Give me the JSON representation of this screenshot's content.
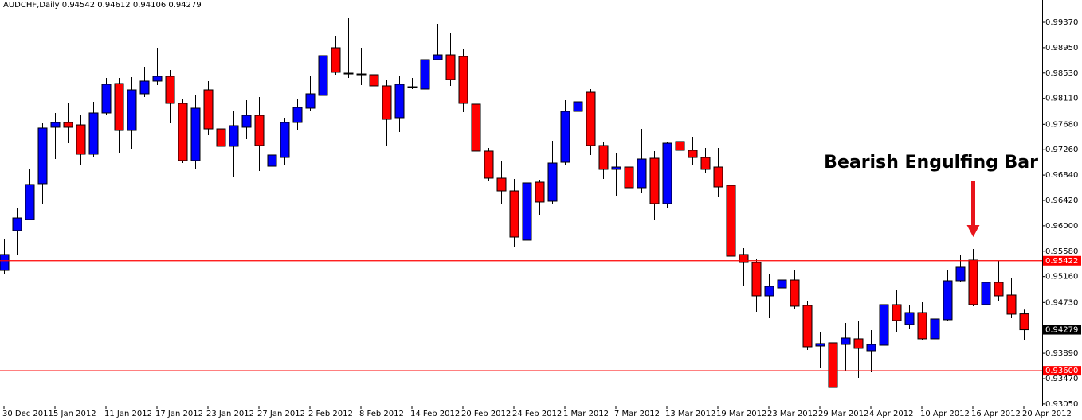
{
  "chart_data": {
    "type": "candlestick",
    "title": "AUDCHF,Daily  0.94542 0.94612 0.94106 0.94279",
    "annotation": "Bearish Engulfing Bar",
    "annotation_bar": 76,
    "up_color": "#0000ff",
    "down_color": "#ff0000",
    "categories": [
      "30 Dec 2011",
      null,
      null,
      null,
      "5 Jan 2012",
      null,
      null,
      null,
      "11 Jan 2012",
      null,
      null,
      null,
      "17 Jan 2012",
      null,
      null,
      null,
      "23 Jan 2012",
      null,
      null,
      null,
      "27 Jan 2012",
      null,
      null,
      null,
      "2 Feb 2012",
      null,
      null,
      null,
      "8 Feb 2012",
      null,
      null,
      null,
      "14 Feb 2012",
      null,
      null,
      null,
      "20 Feb 2012",
      null,
      null,
      null,
      "24 Feb 2012",
      null,
      null,
      null,
      "1 Mar 2012",
      null,
      null,
      null,
      "7 Mar 2012",
      null,
      null,
      null,
      "13 Mar 2012",
      null,
      null,
      null,
      "19 Mar 2012",
      null,
      null,
      null,
      "23 Mar 2012",
      null,
      null,
      null,
      "29 Mar 2012",
      null,
      null,
      null,
      "4 Apr 2012",
      null,
      null,
      null,
      "10 Apr 2012",
      null,
      null,
      null,
      "16 Apr 2012",
      null,
      null,
      null,
      "20 Apr 2012"
    ],
    "open": [
      0.95261,
      0.9592,
      0.96104,
      0.96697,
      0.97632,
      0.97711,
      0.97671,
      0.97184,
      0.97869,
      0.98356,
      0.97579,
      0.98185,
      0.98396,
      0.98475,
      0.98027,
      0.97079,
      0.98251,
      0.97605,
      0.97316,
      0.97632,
      0.97829,
      0.96986,
      0.97131,
      0.97711,
      0.97948,
      0.98159,
      0.98949,
      0.98527,
      0.98514,
      0.98501,
      0.98317,
      0.9779,
      0.98303,
      0.98264,
      0.98751,
      0.9883,
      0.98804,
      0.98014,
      0.97237,
      0.96789,
      0.96578,
      0.95762,
      0.96723,
      0.96407,
      0.97052,
      0.97895,
      0.98211,
      0.97329,
      0.96934,
      0.96973,
      0.96631,
      0.97118,
      0.96367,
      0.97395,
      0.9725,
      0.97131,
      0.96973,
      0.9667,
      0.95525,
      0.95393,
      0.9484,
      0.94971,
      0.95103,
      0.94682,
      0.9401,
      0.94063,
      0.94036,
      0.94129,
      0.93931,
      0.94023,
      0.94695,
      0.94366,
      0.94563,
      0.94129,
      0.94445,
      0.9509,
      0.95432,
      0.94695,
      0.95064,
      0.94853,
      0.94542
    ],
    "high": [
      0.95788,
      0.96288,
      0.96934,
      0.97698,
      0.97869,
      0.98027,
      0.97829,
      0.98053,
      0.98448,
      0.98448,
      0.98462,
      0.98633,
      0.98949,
      0.9858,
      0.98093,
      0.98159,
      0.98396,
      0.97698,
      0.97895,
      0.9808,
      0.98132,
      0.97263,
      0.9779,
      0.98093,
      0.98475,
      0.99173,
      0.99146,
      0.99436,
      0.98949,
      0.98751,
      0.98422,
      0.98475,
      0.98448,
      0.99133,
      0.99344,
      0.99186,
      0.98922,
      0.98093,
      0.97289,
      0.97079,
      0.96776,
      0.96947,
      0.96763,
      0.97408,
      0.9808,
      0.98369,
      0.98264,
      0.97395,
      0.9721,
      0.97237,
      0.97605,
      0.97237,
      0.97395,
      0.97566,
      0.97474,
      0.97289,
      0.97289,
      0.96736,
      0.9563,
      0.95459,
      0.95209,
      0.95498,
      0.95261,
      0.94761,
      0.94234,
      0.94102,
      0.94392,
      0.94418,
      0.94273,
      0.94919,
      0.94932,
      0.94682,
      0.94734,
      0.94629,
      0.95261,
      0.95525,
      0.95617,
      0.95327,
      0.95419,
      0.95129,
      0.94612
    ],
    "low": [
      0.95195,
      0.95525,
      0.96091,
      0.96367,
      0.97105,
      0.97368,
      0.97013,
      0.97131,
      0.97829,
      0.9721,
      0.97276,
      0.98132,
      0.9833,
      0.97698,
      0.97039,
      0.96934,
      0.975,
      0.96868,
      0.96815,
      0.97434,
      0.96907,
      0.96631,
      0.97,
      0.97592,
      0.97895,
      0.9779,
      0.98501,
      0.98448,
      0.9833,
      0.98277,
      0.97329,
      0.97553,
      0.98264,
      0.98185,
      0.98738,
      0.98317,
      0.97882,
      0.97145,
      0.96736,
      0.96367,
      0.95656,
      0.95432,
      0.96183,
      0.96367,
      0.97013,
      0.97856,
      0.97171,
      0.96776,
      0.96499,
      0.96249,
      0.96539,
      0.96091,
      0.96288,
      0.9696,
      0.97013,
      0.96868,
      0.96473,
      0.95472,
      0.94998,
      0.94576,
      0.94471,
      0.94879,
      0.94629,
      0.93944,
      0.93641,
      0.93194,
      0.93602,
      0.93483,
      0.93575,
      0.93918,
      0.94234,
      0.943,
      0.94102,
      0.93944,
      0.94431,
      0.95064,
      0.94669,
      0.94669,
      0.94761,
      0.94471,
      0.94106
    ],
    "close": [
      0.95525,
      0.9613,
      0.96684,
      0.97619,
      0.97711,
      0.97632,
      0.97184,
      0.97869,
      0.98343,
      0.97579,
      0.98251,
      0.98396,
      0.98475,
      0.98027,
      0.97079,
      0.97948,
      0.97605,
      0.97316,
      0.97658,
      0.97829,
      0.97329,
      0.97171,
      0.97711,
      0.97961,
      0.98185,
      0.98817,
      0.98541,
      0.98514,
      0.9851,
      0.98317,
      0.97763,
      0.98343,
      0.9829,
      0.98751,
      0.9883,
      0.98422,
      0.98027,
      0.97237,
      0.96789,
      0.96578,
      0.95814,
      0.9671,
      0.96394,
      0.97039,
      0.97895,
      0.98053,
      0.97329,
      0.96934,
      0.96973,
      0.96631,
      0.97105,
      0.96367,
      0.97368,
      0.9725,
      0.97131,
      0.96934,
      0.96644,
      0.95498,
      0.95393,
      0.9484,
      0.94998,
      0.95103,
      0.94669,
      0.93997,
      0.9405,
      0.93325,
      0.94142,
      0.93971,
      0.94036,
      0.94695,
      0.94431,
      0.94563,
      0.94129,
      0.94458,
      0.9509,
      0.95314,
      0.94695,
      0.95064,
      0.9484,
      0.94537,
      0.94279
    ],
    "ylim": [
      0.93022,
      0.99739
    ],
    "yticks": [
      {
        "value": 0.9937,
        "label": "0.99370"
      },
      {
        "value": 0.9895,
        "label": "0.98950"
      },
      {
        "value": 0.9853,
        "label": "0.98530"
      },
      {
        "value": 0.9811,
        "label": "0.98110"
      },
      {
        "value": 0.9768,
        "label": "0.97680"
      },
      {
        "value": 0.9726,
        "label": "0.97260"
      },
      {
        "value": 0.9684,
        "label": "0.96840"
      },
      {
        "value": 0.9642,
        "label": "0.96420"
      },
      {
        "value": 0.96,
        "label": "0.96000"
      },
      {
        "value": 0.9558,
        "label": "0.95580"
      },
      {
        "value": 0.9516,
        "label": "0.95160"
      },
      {
        "value": 0.9473,
        "label": "0.94730"
      },
      {
        "value": 0.9389,
        "label": "0.93890"
      },
      {
        "value": 0.9347,
        "label": "0.93470"
      },
      {
        "value": 0.9305,
        "label": "0.93050"
      }
    ],
    "levels": [
      {
        "value": 0.95422,
        "color": "#ff0000"
      },
      {
        "value": 0.936,
        "label": "0.93600",
        "color": "#ff0000"
      }
    ],
    "current_price": 0.94279,
    "grid": false
  }
}
